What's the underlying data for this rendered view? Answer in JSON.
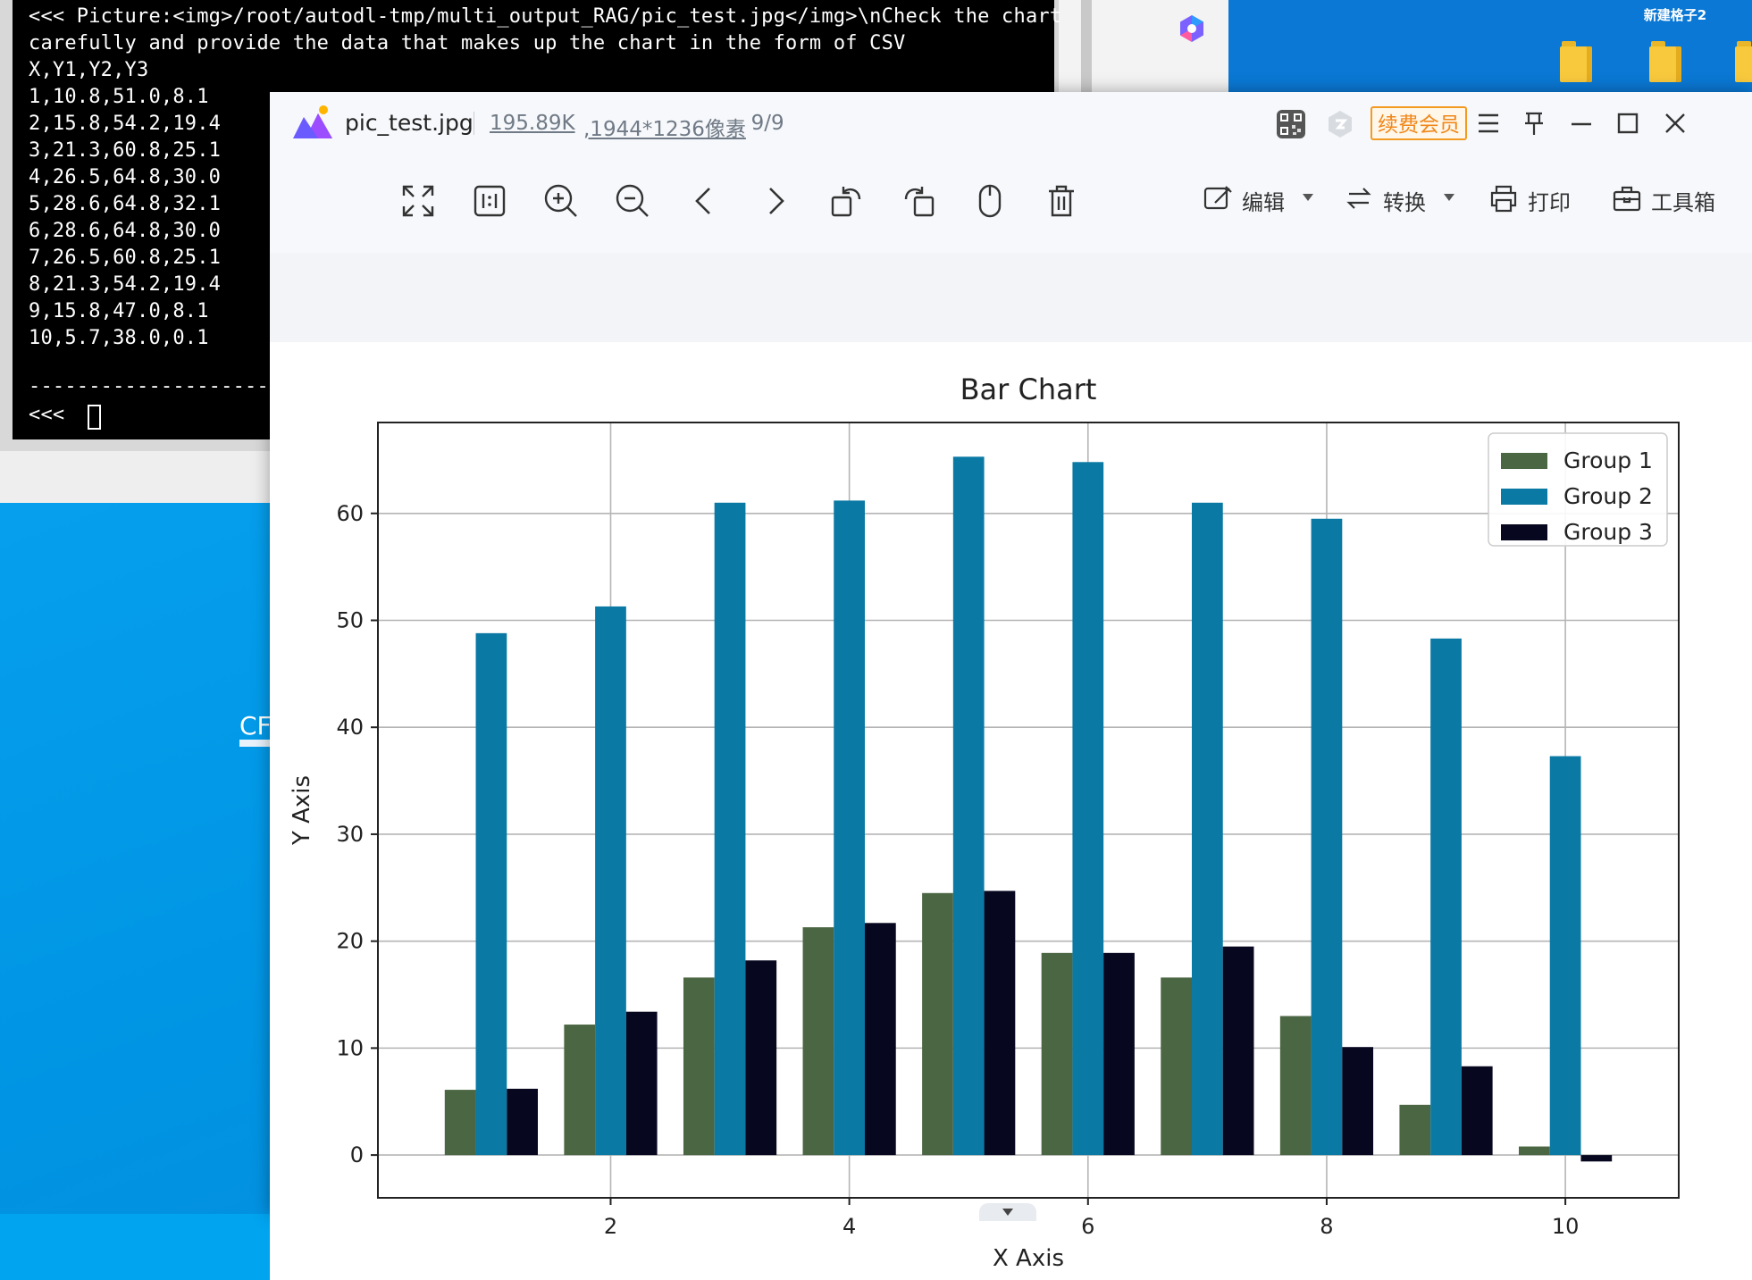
{
  "desktop": {
    "folder_label": "新建格子2",
    "app_label": "CF"
  },
  "terminal": {
    "lines": [
      "<<< Picture:<img>/root/autodl-tmp/multi_output_RAG/pic_test.jpg</img>\\nCheck the chart",
      "carefully and provide the data that makes up the chart in the form of CSV",
      "X,Y1,Y2,Y3",
      "1,10.8,51.0,8.1",
      "2,15.8,54.2,19.4",
      "3,21.3,60.8,25.1",
      "4,26.5,64.8,30.0",
      "5,28.6,64.8,32.1",
      "6,28.6,64.8,30.0",
      "7,26.5,60.8,25.1",
      "8,21.3,54.2,19.4",
      "9,15.8,47.0,8.1",
      "10,5.7,38.0,0.1",
      "",
      "-----------------------",
      "<<< "
    ]
  },
  "viewer": {
    "file_name": "pic_test.jpg",
    "file_size": "195.89K",
    "file_dims": ",1944*1236像素",
    "page_count": ", 9/9",
    "vip_label": "续费会员",
    "toolbar": {
      "edit_label": "编辑",
      "convert_label": "转换",
      "print_label": "打印",
      "tools_label": "工具箱"
    },
    "icons": {
      "fullscreen": "expand-icon",
      "actual_size": "one-to-one-icon",
      "zoom_in": "zoom-in-icon",
      "zoom_out": "zoom-out-icon",
      "prev": "chevron-left-icon",
      "next": "chevron-right-icon",
      "rotate_left": "rotate-left-icon",
      "rotate_right": "rotate-right-icon",
      "mouse": "mouse-icon",
      "delete": "trash-icon"
    }
  },
  "chart_data": {
    "type": "bar",
    "title": "Bar Chart",
    "xlabel": "X Axis",
    "ylabel": "Y Axis",
    "x": [
      1,
      2,
      3,
      4,
      5,
      6,
      7,
      8,
      9,
      10
    ],
    "xticks": [
      "2",
      "4",
      "6",
      "8",
      "10"
    ],
    "yticks": [
      "0",
      "10",
      "20",
      "30",
      "40",
      "50",
      "60"
    ],
    "xlim": [
      0.05,
      10.95
    ],
    "ylim": [
      -4,
      68.5
    ],
    "grid": true,
    "legend_position": "top-right",
    "series": [
      {
        "name": "Group 1",
        "color": "#4b6642",
        "values": [
          6.1,
          12.2,
          16.6,
          21.3,
          24.5,
          18.9,
          16.6,
          13.0,
          4.7,
          0.8
        ]
      },
      {
        "name": "Group 2",
        "color": "#0a79a4",
        "values": [
          48.8,
          51.3,
          61.0,
          61.2,
          65.3,
          64.8,
          61.0,
          59.5,
          48.3,
          37.3
        ]
      },
      {
        "name": "Group 3",
        "color": "#070720",
        "values": [
          6.2,
          13.4,
          18.2,
          21.7,
          24.7,
          18.9,
          19.5,
          10.1,
          8.3,
          -0.6
        ]
      }
    ]
  }
}
